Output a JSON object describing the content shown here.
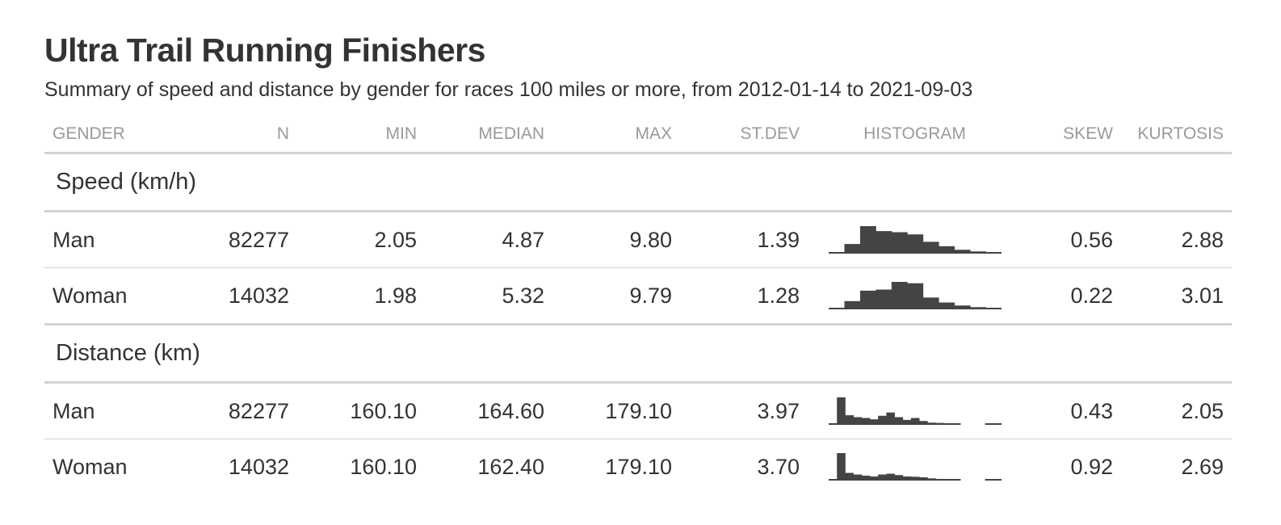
{
  "title": "Ultra Trail Running Finishers",
  "subtitle": "Summary of speed and distance by gender for races 100 miles or more, from 2012-01-14 to 2021-09-03",
  "columns": {
    "gender": "GENDER",
    "n": "N",
    "min": "MIN",
    "median": "MEDIAN",
    "max": "MAX",
    "stdev": "ST.DEV",
    "histogram": "HISTOGRAM",
    "skew": "SKEW",
    "kurtosis": "KURTOSIS"
  },
  "groups": [
    {
      "label": "Speed (km/h)",
      "rows": [
        {
          "gender": "Man",
          "n": "82277",
          "min": "2.05",
          "median": "4.87",
          "max": "9.80",
          "stdev": "1.39",
          "skew": "0.56",
          "kurtosis": "2.88",
          "histogram": [
            0.03,
            0.35,
            1.0,
            0.82,
            0.78,
            0.7,
            0.43,
            0.27,
            0.14,
            0.08,
            0.05
          ]
        },
        {
          "gender": "Woman",
          "n": "14032",
          "min": "1.98",
          "median": "5.32",
          "max": "9.79",
          "stdev": "1.28",
          "skew": "0.22",
          "kurtosis": "3.01",
          "histogram": [
            0.05,
            0.3,
            0.68,
            0.72,
            1.0,
            0.95,
            0.43,
            0.25,
            0.14,
            0.08,
            0.04
          ]
        }
      ]
    },
    {
      "label": "Distance (km)",
      "rows": [
        {
          "gender": "Man",
          "n": "82277",
          "min": "160.10",
          "median": "164.60",
          "max": "179.10",
          "stdev": "3.97",
          "skew": "0.43",
          "kurtosis": "2.05",
          "histogram": [
            0.05,
            1.0,
            0.35,
            0.28,
            0.25,
            0.2,
            0.33,
            0.45,
            0.28,
            0.18,
            0.25,
            0.14,
            0.08,
            0.07,
            0.05,
            0.05,
            0,
            0,
            0,
            0.02,
            0.05
          ]
        },
        {
          "gender": "Woman",
          "n": "14032",
          "min": "160.10",
          "median": "162.40",
          "max": "179.10",
          "stdev": "3.70",
          "skew": "0.92",
          "kurtosis": "2.69",
          "histogram": [
            0.05,
            1.0,
            0.28,
            0.22,
            0.18,
            0.15,
            0.22,
            0.25,
            0.2,
            0.15,
            0.14,
            0.12,
            0.08,
            0.06,
            0.05,
            0.05,
            0,
            0,
            0,
            0.02,
            0.05
          ]
        }
      ]
    }
  ]
}
